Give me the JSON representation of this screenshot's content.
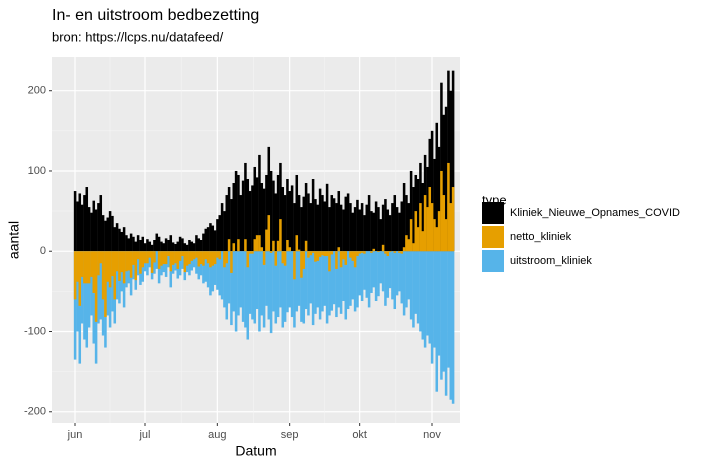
{
  "chart_data": {
    "type": "bar",
    "title": "In- en uitstroom bedbezetting",
    "subtitle": "bron: https://lcps.nu/datafeed/",
    "x_label": "Datum",
    "y_label": "aantal",
    "legend_title": "type",
    "legend_position": "right",
    "grid": true,
    "ylim": [
      -214,
      242
    ],
    "yticks": [
      -200,
      -100,
      0,
      100,
      200
    ],
    "categories": [
      "jun",
      null,
      null,
      null,
      null,
      null,
      null,
      null,
      null,
      null,
      null,
      null,
      null,
      null,
      null,
      null,
      null,
      null,
      null,
      null,
      null,
      null,
      null,
      null,
      null,
      null,
      null,
      null,
      null,
      null,
      "jul",
      null,
      null,
      null,
      null,
      null,
      null,
      null,
      null,
      null,
      null,
      null,
      null,
      null,
      null,
      null,
      null,
      null,
      null,
      null,
      null,
      null,
      null,
      null,
      null,
      null,
      null,
      null,
      null,
      null,
      null,
      "aug",
      null,
      null,
      null,
      null,
      null,
      null,
      null,
      null,
      null,
      null,
      null,
      null,
      null,
      null,
      null,
      null,
      null,
      null,
      null,
      null,
      null,
      null,
      null,
      null,
      null,
      null,
      null,
      null,
      null,
      null,
      "sep",
      null,
      null,
      null,
      null,
      null,
      null,
      null,
      null,
      null,
      null,
      null,
      null,
      null,
      null,
      null,
      null,
      null,
      null,
      null,
      null,
      null,
      null,
      null,
      null,
      null,
      null,
      null,
      null,
      null,
      "okt",
      null,
      null,
      null,
      null,
      null,
      null,
      null,
      null,
      null,
      null,
      null,
      null,
      null,
      null,
      null,
      null,
      null,
      null,
      null,
      null,
      null,
      null,
      null,
      null,
      null,
      null,
      null,
      null,
      null,
      null,
      "nov",
      null,
      null,
      null,
      null,
      null,
      null,
      null,
      null,
      null
    ],
    "series": [
      {
        "name": "Kliniek_Nieuwe_Opnames_COVID",
        "color": "#000000",
        "values": [
          75,
          62,
          72,
          58,
          70,
          80,
          55,
          48,
          63,
          52,
          60,
          70,
          45,
          38,
          42,
          50,
          44,
          30,
          35,
          28,
          24,
          30,
          20,
          16,
          22,
          18,
          12,
          20,
          14,
          18,
          10,
          15,
          12,
          8,
          14,
          22,
          18,
          12,
          10,
          16,
          14,
          20,
          11,
          9,
          12,
          18,
          16,
          10,
          8,
          14,
          12,
          10,
          20,
          16,
          14,
          22,
          28,
          30,
          35,
          32,
          26,
          40,
          45,
          60,
          50,
          70,
          80,
          65,
          85,
          100,
          95,
          70,
          88,
          110,
          90,
          75,
          82,
          105,
          92,
          120,
          85,
          78,
          95,
          130,
          100,
          88,
          72,
          95,
          110,
          80,
          70,
          90,
          75,
          82,
          60,
          95,
          70,
          55,
          68,
          85,
          72,
          60,
          90,
          65,
          58,
          78,
          70,
          62,
          84,
          55,
          70,
          66,
          60,
          75,
          58,
          52,
          68,
          72,
          60,
          48,
          55,
          64,
          52,
          60,
          45,
          58,
          70,
          50,
          48,
          62,
          55,
          40,
          58,
          65,
          52,
          45,
          60,
          70,
          55,
          48,
          62,
          85,
          70,
          60,
          100,
          80,
          95,
          90,
          110,
          85,
          120,
          105,
          140,
          150,
          115,
          160,
          130,
          210,
          170,
          180,
          225,
          200,
          225
        ]
      },
      {
        "name": "netto_kliniek",
        "color": "#e69f00",
        "values": [
          -60,
          -38,
          -68,
          -32,
          -40,
          -40,
          -40,
          -32,
          -52,
          -88,
          -30,
          -15,
          -60,
          -82,
          -38,
          -45,
          -31,
          -60,
          -25,
          -37,
          -26,
          -40,
          -25,
          -24,
          -33,
          -17,
          -36,
          -10,
          -28,
          -20,
          -15,
          -15,
          -8,
          -27,
          -14,
          0,
          -22,
          -18,
          -16,
          -16,
          -6,
          -25,
          -17,
          -15,
          -22,
          -12,
          -6,
          -26,
          -18,
          -16,
          -12,
          -10,
          -8,
          -19,
          -16,
          -18,
          -10,
          -15,
          -20,
          -18,
          -16,
          -8,
          -10,
          0,
          -20,
          -15,
          15,
          -27,
          10,
          0,
          15,
          0,
          0,
          15,
          -20,
          -3,
          -3,
          15,
          20,
          20,
          5,
          -17,
          27,
          45,
          -2,
          13,
          -18,
          13,
          40,
          -15,
          -18,
          14,
          5,
          0,
          -35,
          20,
          2,
          -33,
          -22,
          13,
          -8,
          -5,
          -2,
          -13,
          -12,
          -7,
          -5,
          -6,
          -6,
          -25,
          -4,
          0,
          -22,
          5,
          -20,
          -10,
          -17,
          0,
          -8,
          -12,
          -20,
          -6,
          -3,
          -2,
          -3,
          0,
          0,
          -2,
          3,
          0,
          -1,
          0,
          8,
          -3,
          -6,
          -1,
          0,
          -2,
          0,
          -2,
          -3,
          5,
          20,
          15,
          40,
          10,
          50,
          30,
          60,
          25,
          70,
          55,
          80,
          60,
          40,
          30,
          50,
          100,
          70,
          40,
          110,
          60,
          80
        ]
      },
      {
        "name": "uitstroom_kliniek",
        "color": "#56b4e9",
        "values": [
          -135,
          -100,
          -140,
          -90,
          -110,
          -120,
          -95,
          -80,
          -115,
          -140,
          -90,
          -85,
          -105,
          -120,
          -80,
          -95,
          -75,
          -90,
          -60,
          -65,
          -50,
          -70,
          -45,
          -40,
          -55,
          -35,
          -48,
          -30,
          -42,
          -38,
          -25,
          -30,
          -20,
          -35,
          -28,
          -22,
          -40,
          -30,
          -26,
          -32,
          -20,
          -45,
          -28,
          -24,
          -34,
          -30,
          -22,
          -36,
          -26,
          -30,
          -24,
          -20,
          -28,
          -35,
          -30,
          -40,
          -38,
          -45,
          -55,
          -50,
          -42,
          -48,
          -55,
          -60,
          -70,
          -85,
          -65,
          -92,
          -75,
          -100,
          -80,
          -70,
          -88,
          -95,
          -110,
          -78,
          -85,
          -90,
          -72,
          -100,
          -80,
          -95,
          -68,
          -85,
          -102,
          -75,
          -90,
          -82,
          -70,
          -95,
          -88,
          -76,
          -70,
          -82,
          -95,
          -75,
          -68,
          -88,
          -90,
          -72,
          -80,
          -65,
          -92,
          -78,
          -70,
          -85,
          -75,
          -68,
          -90,
          -80,
          -74,
          -66,
          -82,
          -70,
          -78,
          -62,
          -85,
          -72,
          -68,
          -60,
          -75,
          -70,
          -55,
          -62,
          -48,
          -58,
          -70,
          -52,
          -45,
          -62,
          -56,
          -40,
          -50,
          -68,
          -58,
          -46,
          -60,
          -72,
          -55,
          -50,
          -65,
          -80,
          -70,
          -60,
          -85,
          -95,
          -78,
          -90,
          -100,
          -110,
          -120,
          -105,
          -115,
          -140,
          -120,
          -175,
          -130,
          -160,
          -150,
          -180,
          -145,
          -185,
          -190
        ]
      }
    ]
  }
}
